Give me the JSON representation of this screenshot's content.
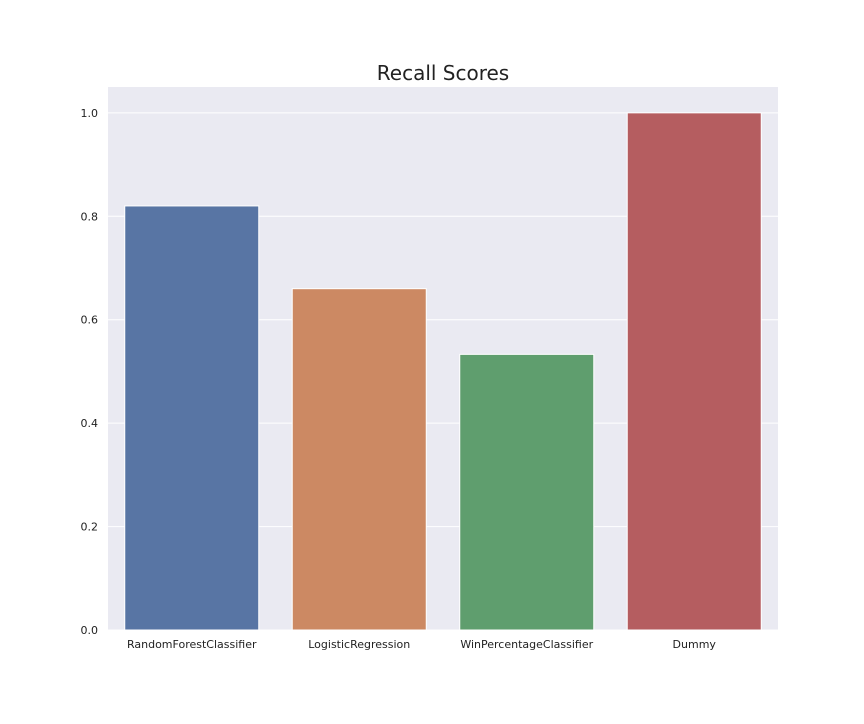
{
  "chart_data": {
    "type": "bar",
    "title": "Recall Scores",
    "xlabel": "",
    "ylabel": "",
    "categories": [
      "RandomForestClassifier",
      "LogisticRegression",
      "WinPercentageClassifier",
      "Dummy"
    ],
    "values": [
      0.82,
      0.66,
      0.533,
      1.0
    ],
    "colors": [
      "#5875a4",
      "#cc8963",
      "#5f9e6e",
      "#b55d60"
    ],
    "ylim": [
      0,
      1.05
    ],
    "yticks": [
      0.0,
      0.2,
      0.4,
      0.6,
      0.8,
      1.0
    ],
    "ytick_labels": [
      "0.0",
      "0.2",
      "0.4",
      "0.6",
      "0.8",
      "1.0"
    ],
    "grid": true,
    "legend": "none",
    "background": "#eaeaf2",
    "grid_color": "#ffffff"
  }
}
